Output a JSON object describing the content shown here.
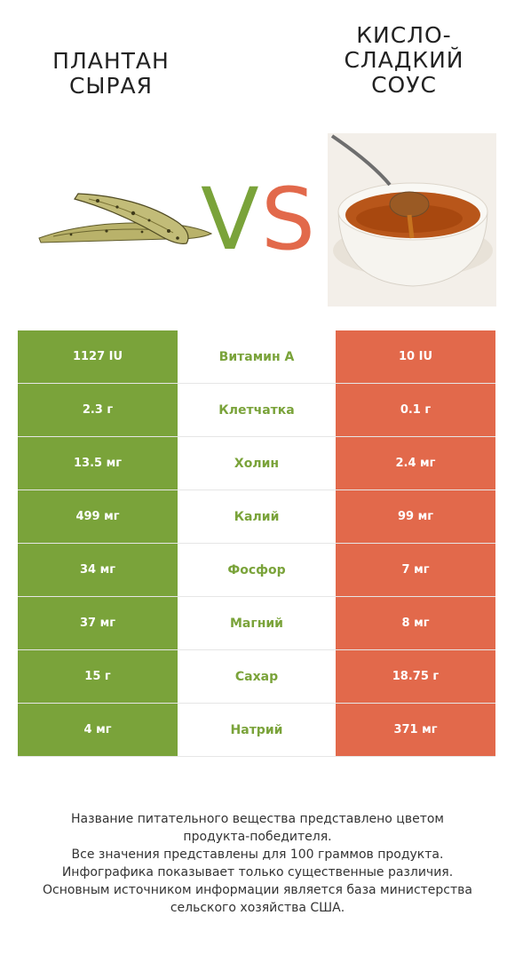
{
  "header": {
    "left_title": [
      "ПЛАНТАН",
      "СЫРАЯ"
    ],
    "right_title": [
      "КИСЛО-",
      "СЛАДКИЙ",
      "СОУС"
    ],
    "vs_v": "V",
    "vs_s": "S"
  },
  "colors": {
    "left": "#7aa33a",
    "right": "#e2694b"
  },
  "rows": [
    {
      "left": "1127 IU",
      "name": "Витамин A",
      "right": "10 IU"
    },
    {
      "left": "2.3 г",
      "name": "Клетчатка",
      "right": "0.1 г"
    },
    {
      "left": "13.5 мг",
      "name": "Холин",
      "right": "2.4 мг"
    },
    {
      "left": "499 мг",
      "name": "Калий",
      "right": "99 мг"
    },
    {
      "left": "34 мг",
      "name": "Фосфор",
      "right": "7 мг"
    },
    {
      "left": "37 мг",
      "name": "Магний",
      "right": "8 мг"
    },
    {
      "left": "15 г",
      "name": "Сахар",
      "right": "18.75 г"
    },
    {
      "left": "4 мг",
      "name": "Натрий",
      "right": "371 мг"
    }
  ],
  "footer": [
    "Название питательного вещества представлено цветом",
    "продукта-победителя.",
    "Все значения представлены для 100 граммов продукта.",
    "Инфографика показывает только существенные различия.",
    "Основным источником информации является база министерства",
    "сельского хозяйства США."
  ]
}
